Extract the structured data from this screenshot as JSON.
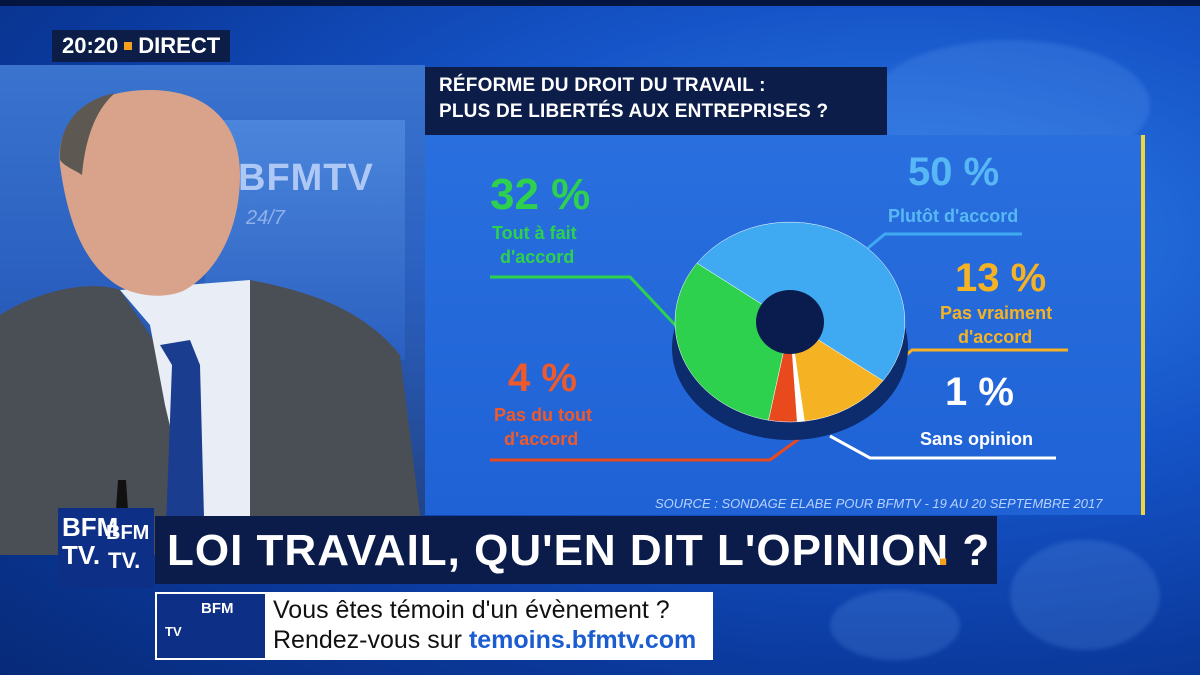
{
  "broadcast": {
    "time": "20:20",
    "live_label": "DIRECT",
    "studio_logo": "BFMTV",
    "studio_tagline": "24/7"
  },
  "chart": {
    "title_line1": "RÉFORME DU DROIT DU TRAVAIL :",
    "title_line2": "PLUS DE LIBERTÉS AUX ENTREPRISES ?",
    "source": "SOURCE : SONDAGE ELABE POUR BFMTV - 19 AU 20 SEPTEMBRE 2017",
    "labels": [
      {
        "pct": "32 %",
        "line1": "Tout à fait",
        "line2": "d'accord"
      },
      {
        "pct": "50 %",
        "line1": "Plutôt d'accord",
        "line2": ""
      },
      {
        "pct": "13 %",
        "line1": "Pas vraiment",
        "line2": "d'accord"
      },
      {
        "pct": "4 %",
        "line1": "Pas du tout",
        "line2": "d'accord"
      },
      {
        "pct": "1 %",
        "line1": "Sans opinion",
        "line2": ""
      }
    ]
  },
  "chart_data": {
    "type": "pie",
    "title": "RÉFORME DU DROIT DU TRAVAIL : PLUS DE LIBERTÉS AUX ENTREPRISES ?",
    "categories": [
      "Plutôt d'accord",
      "Pas vraiment d'accord",
      "Sans opinion",
      "Pas du tout d'accord",
      "Tout à fait d'accord"
    ],
    "values": [
      50,
      13,
      1,
      4,
      32
    ],
    "colors": [
      "#3fa9f2",
      "#f5b324",
      "#ffffff",
      "#e84a1d",
      "#2ed14e"
    ],
    "donut": true
  },
  "lower_third": {
    "logo_top": "BFM",
    "logo_bottom": "TV.",
    "headline": "LOI TRAVAIL, QU'EN DIT L'OPINION ?",
    "headline_dot": ".",
    "ticker_line1": "Vous êtes témoin d'un évènement ?",
    "ticker_line2_prefix": "Rendez-vous sur ",
    "ticker_url": "temoins.bfmtv.com",
    "ticker_logo_top": "BFM",
    "ticker_logo_bottom": "TV"
  },
  "colors": {
    "accent_orange": "#f6a01b",
    "title_bg": "#0d1d4a",
    "panel_blue": "#1e62d6",
    "green": "#2ed14e",
    "light_blue": "#3fa9f2",
    "yellow": "#f5b324",
    "red": "#e84a1d"
  }
}
